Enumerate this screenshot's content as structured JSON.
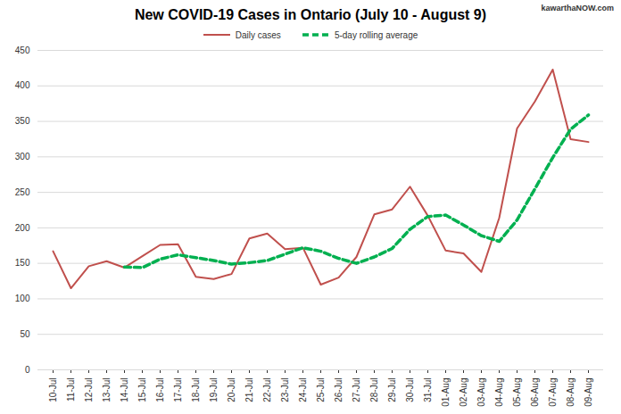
{
  "chart_data": {
    "type": "line",
    "title": "New COVID-19 Cases in Ontario (July 10 - August 9)",
    "annotations": [
      "kawarthaNOW.com"
    ],
    "categories": [
      "10-Jul",
      "11-Jul",
      "12-Jul",
      "13-Jul",
      "14-Jul",
      "15-Jul",
      "16-Jul",
      "17-Jul",
      "18-Jul",
      "19-Jul",
      "20-Jul",
      "21-Jul",
      "22-Jul",
      "23-Jul",
      "24-Jul",
      "25-Jul",
      "26-Jul",
      "27-Jul",
      "28-Jul",
      "29-Jul",
      "30-Jul",
      "31-Jul",
      "01-Aug",
      "02-Aug",
      "03-Aug",
      "04-Aug",
      "05-Aug",
      "06-Aug",
      "07-Aug",
      "08-Aug",
      "09-Aug"
    ],
    "series": [
      {
        "name": "Daily cases",
        "color": "#c0504d",
        "line_style": "solid",
        "values": [
          167,
          115,
          146,
          153,
          144,
          160,
          176,
          177,
          131,
          128,
          135,
          185,
          192,
          170,
          172,
          120,
          130,
          159,
          219,
          226,
          258,
          217,
          168,
          164,
          138,
          214,
          340,
          378,
          423,
          325,
          321
        ]
      },
      {
        "name": "5-day rolling average",
        "color": "#00b050",
        "line_style": "dashed",
        "values": [
          null,
          null,
          null,
          null,
          145,
          144,
          156,
          162,
          158,
          154,
          149,
          151,
          154,
          163,
          172,
          167,
          157,
          150,
          159,
          171,
          198,
          216,
          218,
          204,
          189,
          181,
          211,
          255,
          299,
          339,
          359
        ]
      }
    ],
    "ylim": [
      0,
      450
    ],
    "yticks": [
      0,
      50,
      100,
      150,
      200,
      250,
      300,
      350,
      400,
      450
    ],
    "grid": true,
    "legend": "top"
  }
}
